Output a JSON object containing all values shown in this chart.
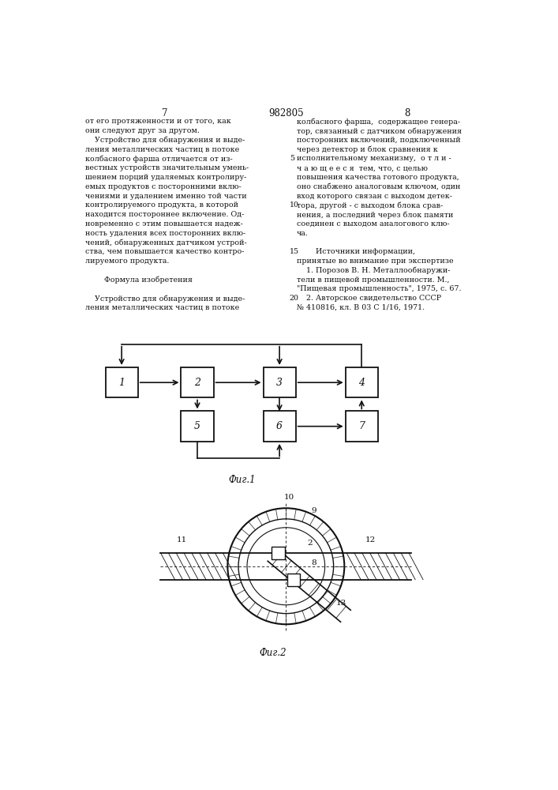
{
  "page_width": 7.07,
  "page_height": 10.0,
  "bg_color": "#ffffff",
  "text_color": "#111111",
  "line_color": "#111111",
  "page_number_left": "7",
  "page_number_center": "982805",
  "page_number_right": "8",
  "left_col_text": [
    "от его протяженности и от того, как",
    "они следуют друг за другом.",
    "    Устройство для обнаружения и выде-",
    "ления металлических частиц в потоке",
    "колбасного фарша отличается от из-",
    "вестных устройств значительным умень-",
    "шением порций удаляемых контролиру-",
    "емых продуктов с посторонними вклю-",
    "чениями и удалением именно той части",
    "контролируемого продукта, в которой",
    "находится постороннее включение. Од-",
    "новременно с этим повышается надеж-",
    "ность удаления всех посторонних вклю-",
    "чений, обнаруженных датчиком устрой-",
    "ства, чем повышается качество контро-",
    "лируемого продукта.",
    "",
    "        Формула изобретения",
    "",
    "    Устройство для обнаружения и выде-",
    "ления металлических частиц в потоке"
  ],
  "right_col_text": [
    "колбасного фарша,  содержащее генера-",
    "тор, связанный с датчиком обнаружения",
    "посторонних включений, подключенный",
    "через детектор и блок сравнения к",
    "исполнительному механизму,  о т л и -",
    "ч а ю щ е е с я  тем, что, с целью",
    "повышения качества готового продукта,",
    "оно снабжено аналоговым ключом, один",
    "вход которого связан с выходом детек-",
    "тора, другой - с выходом блока срав-",
    "нения, а последний через блок памяти",
    "соединен с выходом аналогового клю-",
    "ча.",
    "",
    "        Источники информации,",
    "принятые во внимание при экспертизе",
    "    1. Порозов В. Н. Металлообнаружи-",
    "тели в пищевой промышленности. М.,",
    "\"Пищевая промышленность\", 1975, с. 67.",
    "    2. Авторское свидетельство СССР",
    "№ 410816, кл. В 03 С 1/16, 1971."
  ],
  "line_numbers": [
    5,
    10,
    15,
    20
  ],
  "fig1_label": "Фиг.1",
  "fig2_label": "Фиг.2"
}
